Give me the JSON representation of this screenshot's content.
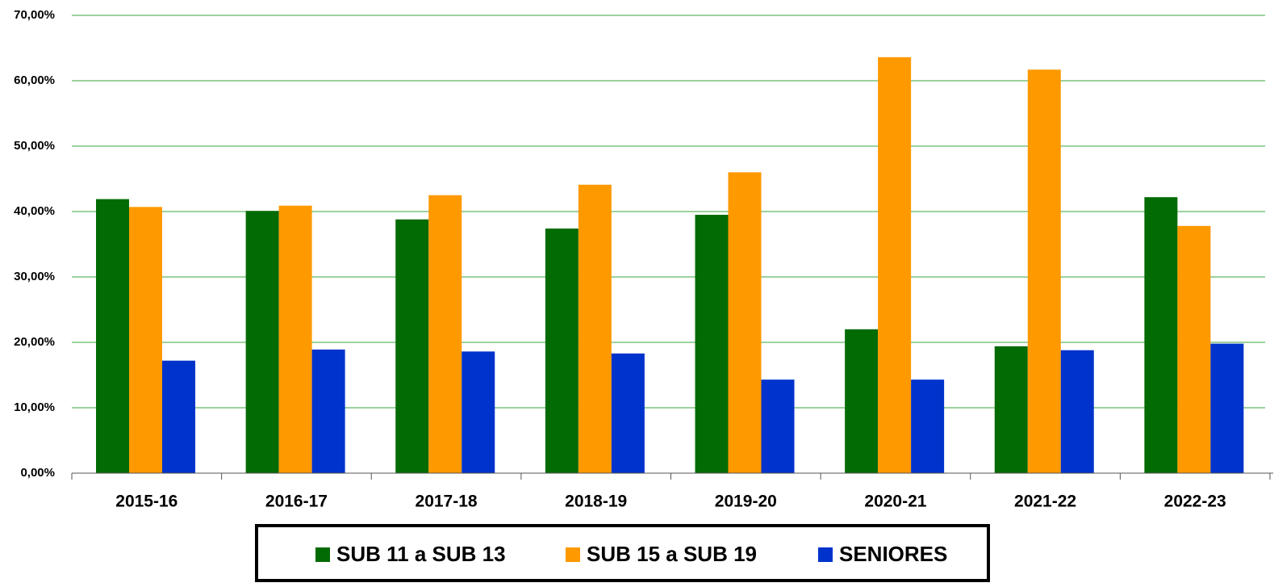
{
  "chart_data": {
    "type": "bar",
    "categories": [
      "2015-16",
      "2016-17",
      "2017-18",
      "2018-19",
      "2019-20",
      "2020-21",
      "2021-22",
      "2022-23"
    ],
    "series": [
      {
        "name": "SUB 11 a SUB 13",
        "color": "#036b03",
        "values": [
          41.9,
          40.1,
          38.8,
          37.4,
          39.5,
          22.0,
          19.4,
          42.2
        ]
      },
      {
        "name": "SUB 15 a SUB 19",
        "color": "#ff9900",
        "values": [
          40.7,
          40.9,
          42.5,
          44.1,
          46.0,
          63.6,
          61.7,
          37.8
        ]
      },
      {
        "name": "SENIORES",
        "color": "#0033cc",
        "values": [
          17.2,
          18.9,
          18.6,
          18.3,
          14.3,
          14.3,
          18.8,
          19.8
        ]
      }
    ],
    "ylim": [
      0,
      70
    ],
    "yticks": [
      {
        "value": 0,
        "label": "0,00%"
      },
      {
        "value": 10,
        "label": "10,00%"
      },
      {
        "value": 20,
        "label": "20,00%"
      },
      {
        "value": 30,
        "label": "30,00%"
      },
      {
        "value": 40,
        "label": "40,00%"
      },
      {
        "value": 50,
        "label": "50,00%"
      },
      {
        "value": 60,
        "label": "60,00%"
      },
      {
        "value": 70,
        "label": "70,00%"
      }
    ],
    "grid": true,
    "legend": "bottom"
  }
}
